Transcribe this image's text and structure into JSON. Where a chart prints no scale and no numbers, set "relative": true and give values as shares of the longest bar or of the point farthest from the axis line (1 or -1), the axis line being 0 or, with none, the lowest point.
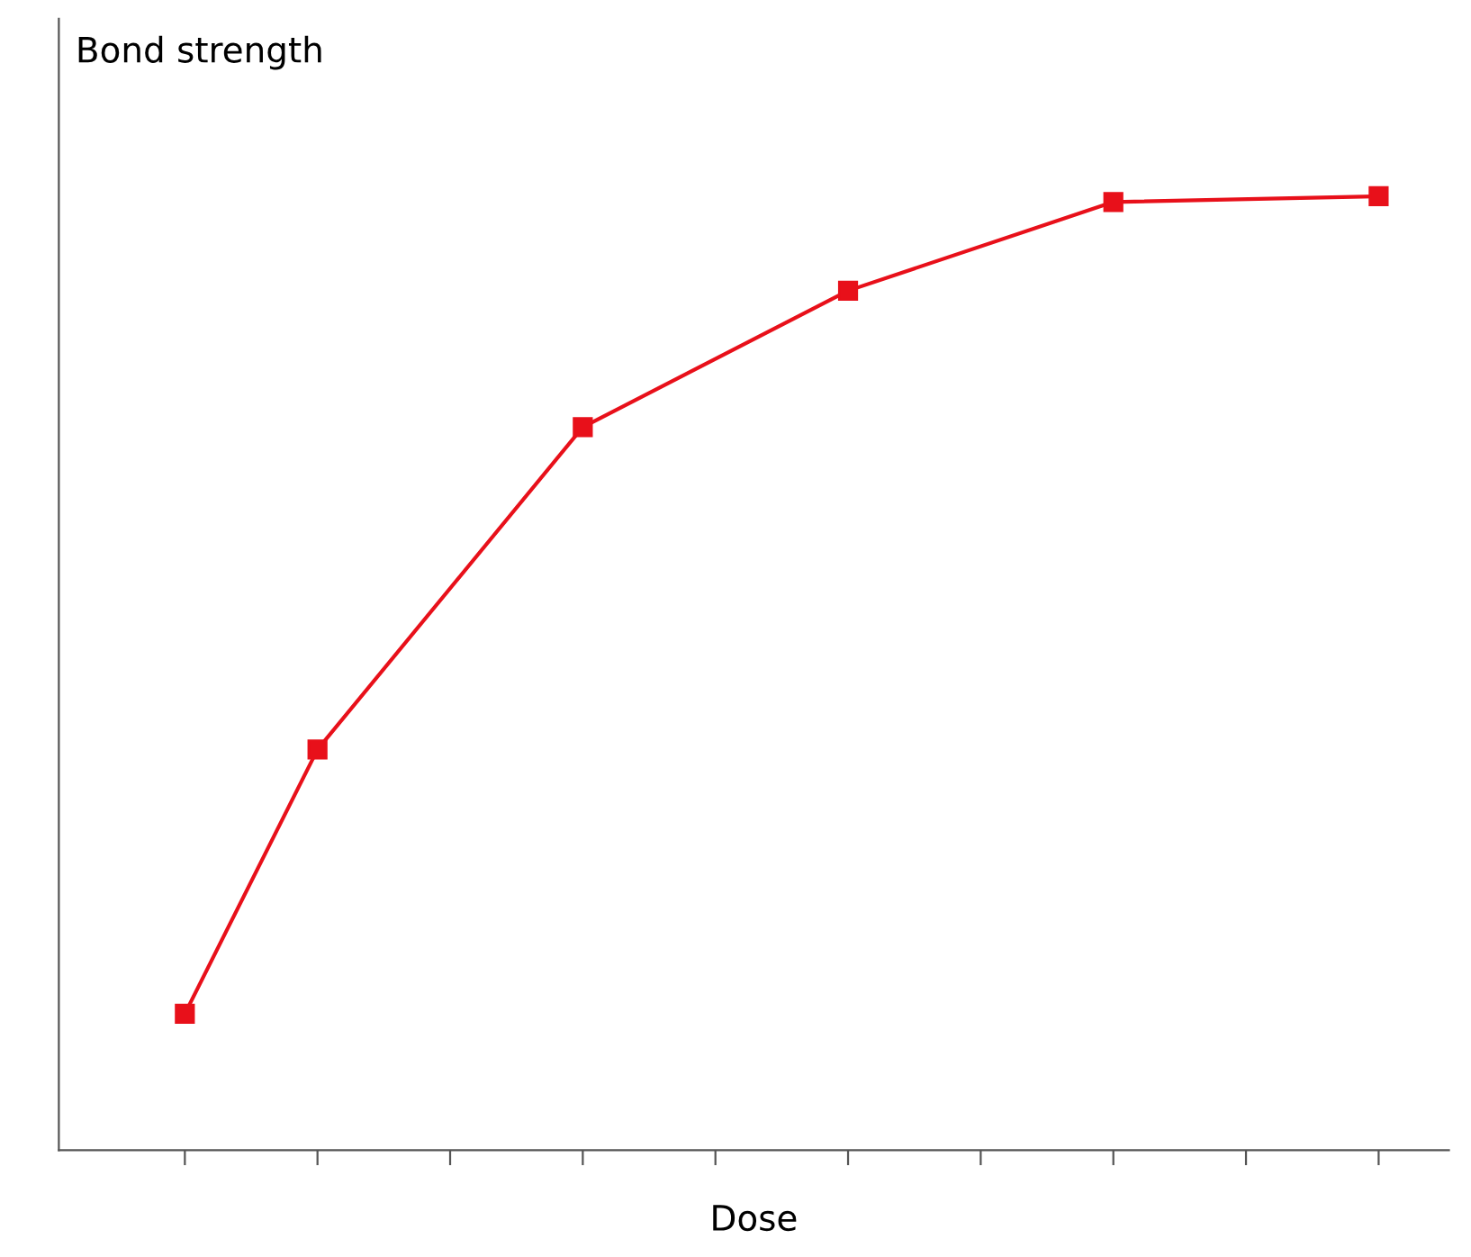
{
  "chart_data": {
    "type": "line",
    "relative": true,
    "ylabel": "Bond strength",
    "xlabel": "Dose",
    "categories": [
      null,
      null,
      null,
      null,
      null,
      null,
      null,
      null,
      null,
      null
    ],
    "series": [
      {
        "color": "#e8101a",
        "values": [
          0.143,
          0.42,
          null,
          0.758,
          null,
          0.901,
          null,
          0.994,
          null,
          1.0
        ]
      }
    ],
    "marker": "square",
    "line_style": "solid",
    "grid": false,
    "legend": false
  }
}
